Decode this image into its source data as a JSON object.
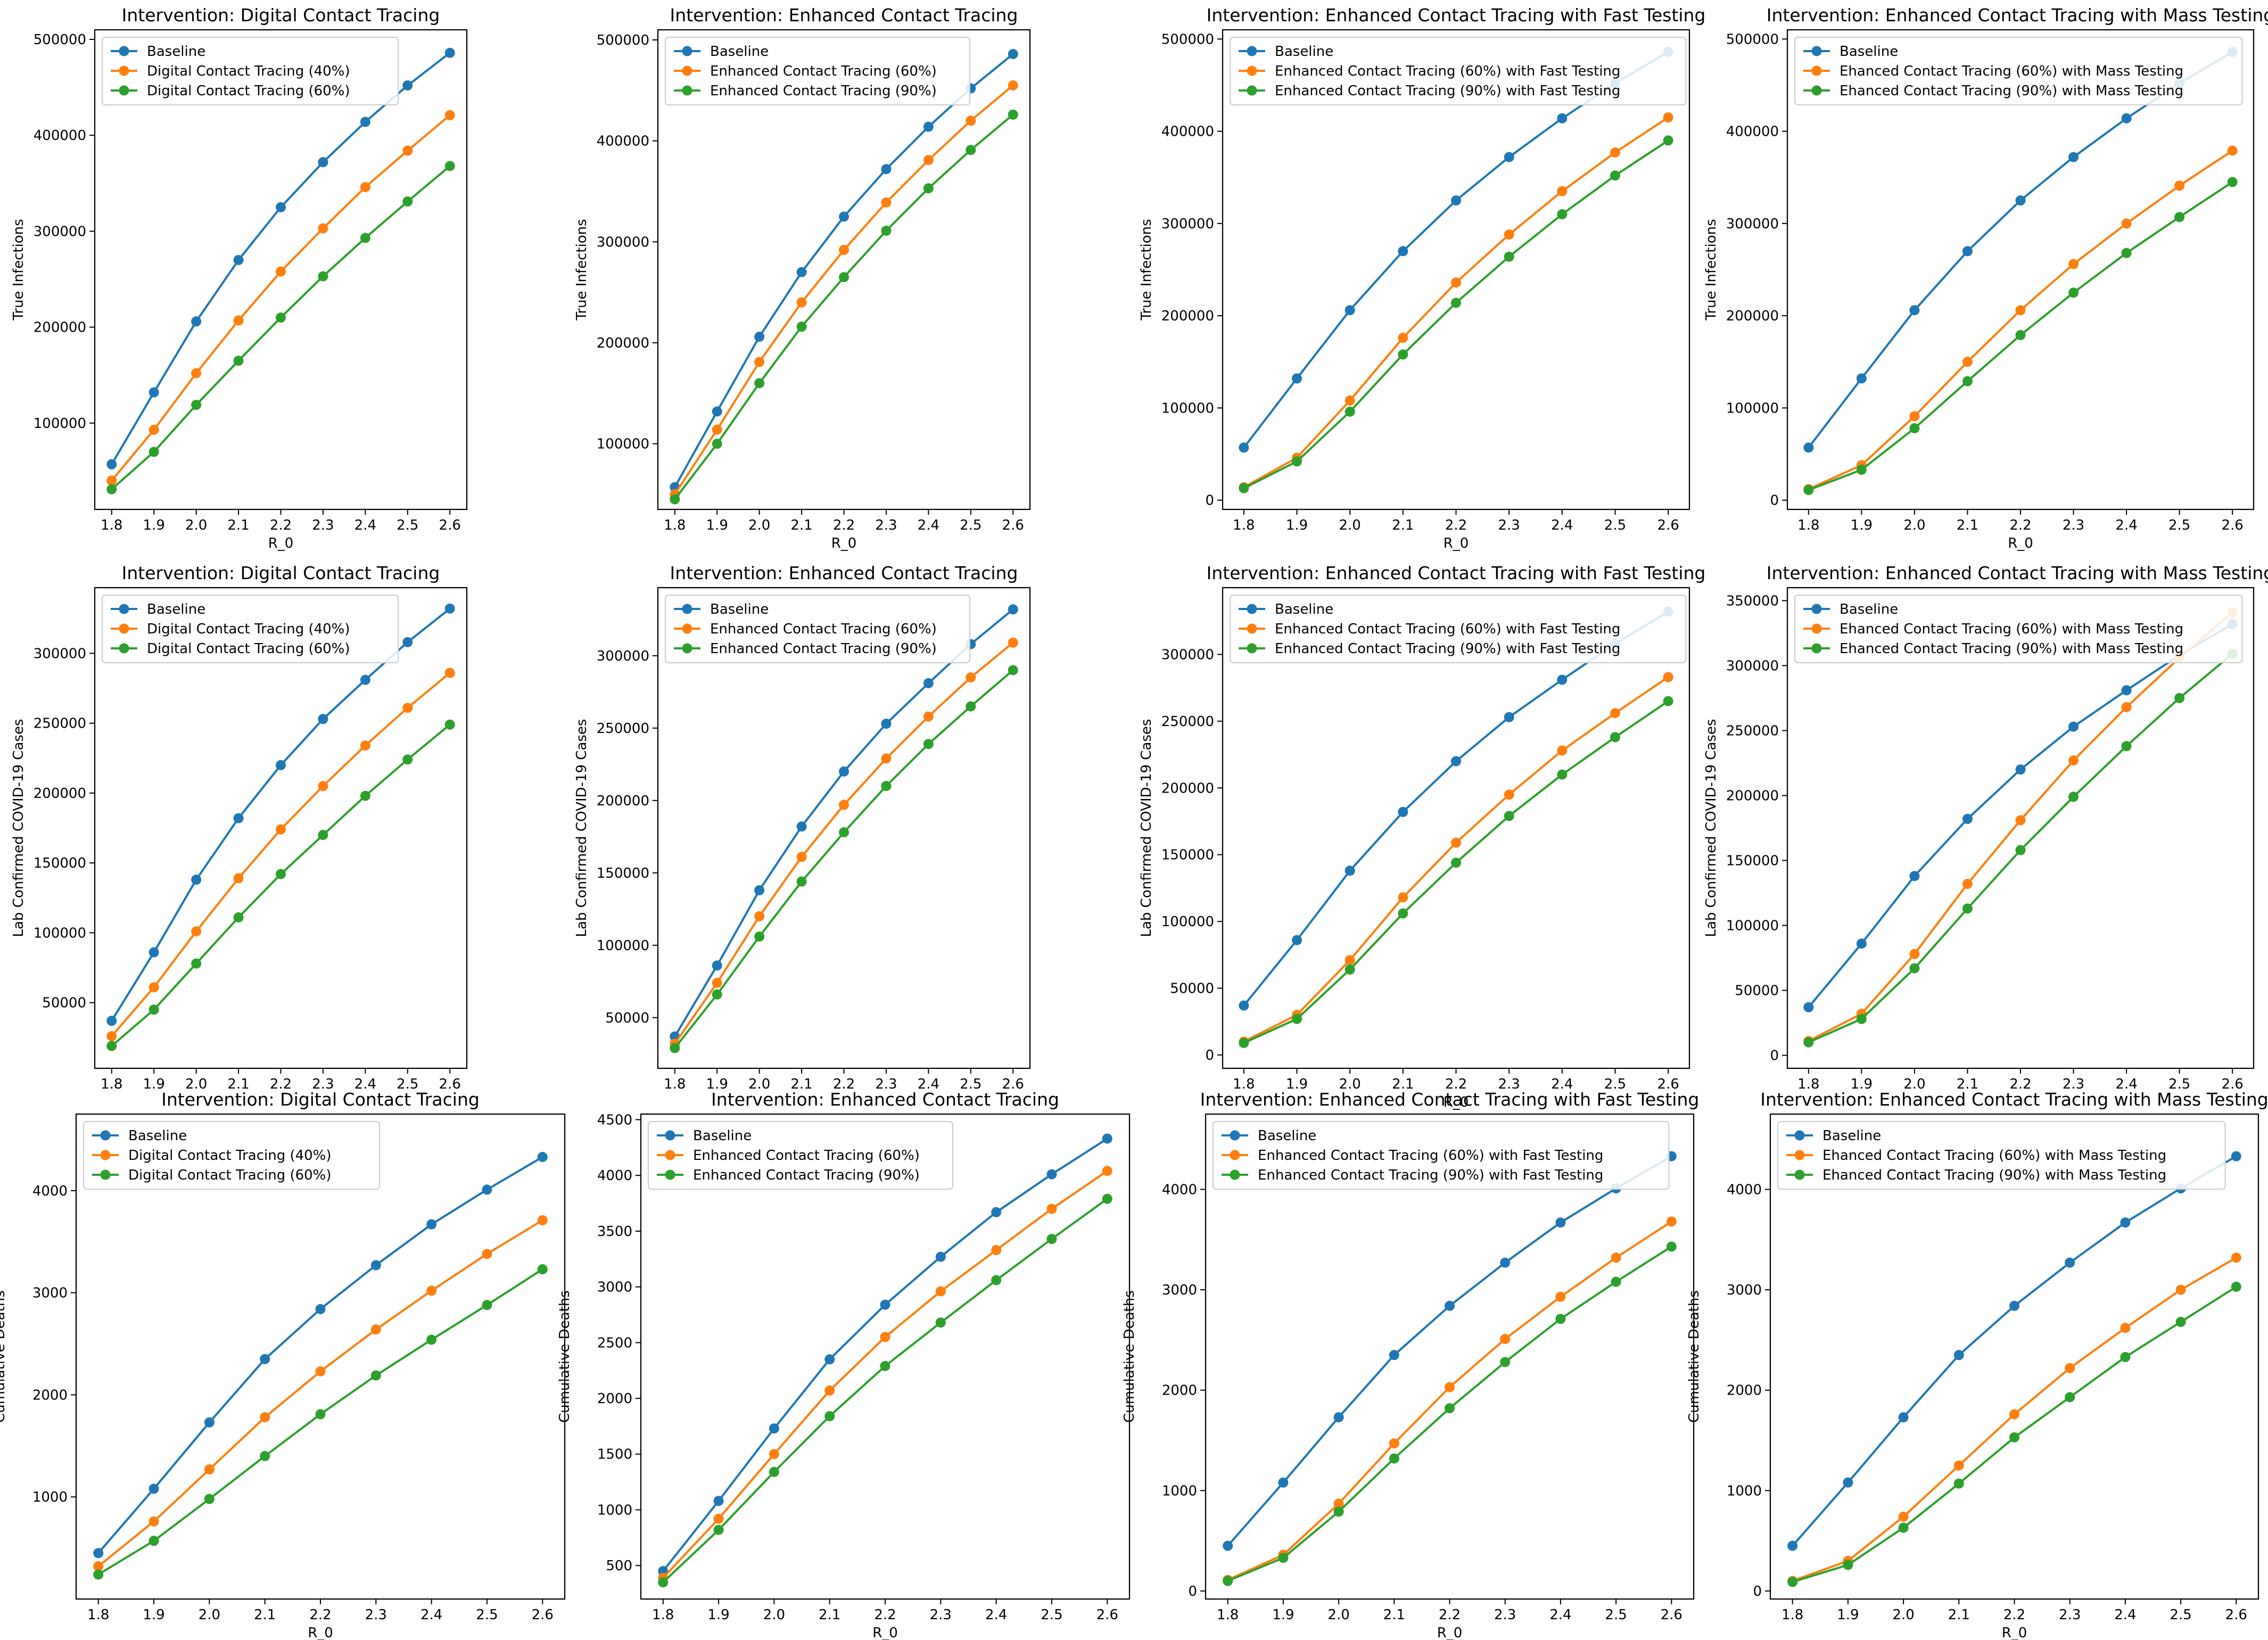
{
  "figure": {
    "colors": {
      "Baseline": "#1f77b4",
      "A": "#ff7f0e",
      "B": "#2ca02c"
    },
    "x": [
      1.8,
      1.9,
      2.0,
      2.1,
      2.2,
      2.3,
      2.4,
      2.5,
      2.6
    ],
    "xticks": [
      "1.8",
      "1.9",
      "2.0",
      "2.1",
      "2.2",
      "2.3",
      "2.4",
      "2.5",
      "2.6"
    ]
  },
  "chart_data": [
    {
      "type": "line",
      "title": "Intervention: Digital Contact Tracing",
      "xlabel": "R_0",
      "ylabel": "True Infections",
      "legend": "top-left",
      "ylim": [
        10000,
        510000
      ],
      "yticks": [
        100000,
        200000,
        300000,
        400000,
        500000
      ],
      "ytick_labels": [
        "100000",
        "200000",
        "300000",
        "400000",
        "500000"
      ],
      "series": [
        {
          "name": "Baseline",
          "values": [
            57000,
            132000,
            206000,
            270000,
            325000,
            372000,
            414000,
            452000,
            486000
          ]
        },
        {
          "name": "Digital Contact Tracing (40%)",
          "values": [
            40000,
            93000,
            152000,
            207000,
            258000,
            303000,
            346000,
            384000,
            421000
          ]
        },
        {
          "name": "Digital Contact Tracing (60%)",
          "values": [
            31000,
            70000,
            119000,
            165000,
            210000,
            253000,
            293000,
            331000,
            368000
          ]
        }
      ]
    },
    {
      "type": "line",
      "title": "Intervention: Enhanced Contact Tracing",
      "xlabel": "R_0",
      "ylabel": "True Infections",
      "legend": "top-left",
      "ylim": [
        35000,
        510000
      ],
      "yticks": [
        100000,
        200000,
        300000,
        400000,
        500000
      ],
      "ytick_labels": [
        "100000",
        "200000",
        "300000",
        "400000",
        "500000"
      ],
      "series": [
        {
          "name": "Baseline",
          "values": [
            57000,
            132000,
            206000,
            270000,
            325000,
            372000,
            414000,
            452000,
            486000
          ]
        },
        {
          "name": "Enhanced Contact Tracing (60%)",
          "values": [
            50000,
            114000,
            181000,
            240000,
            292000,
            339000,
            381000,
            420000,
            455000
          ]
        },
        {
          "name": "Enhanced Contact Tracing (90%)",
          "values": [
            45000,
            100000,
            160000,
            216000,
            265000,
            311000,
            353000,
            391000,
            426000
          ]
        }
      ]
    },
    {
      "type": "line",
      "title": "Intervention: Enhanced Contact Tracing with Fast Testing",
      "xlabel": "R_0",
      "ylabel": "True Infections",
      "legend": "top-left",
      "ylim": [
        -10000,
        510000
      ],
      "yticks": [
        0,
        100000,
        200000,
        300000,
        400000,
        500000
      ],
      "ytick_labels": [
        "0",
        "100000",
        "200000",
        "300000",
        "400000",
        "500000"
      ],
      "series": [
        {
          "name": "Baseline",
          "values": [
            57000,
            132000,
            206000,
            270000,
            325000,
            372000,
            414000,
            452000,
            486000
          ]
        },
        {
          "name": "Enhanced Contact Tracing (60%) with Fast Testing",
          "values": [
            14000,
            46000,
            108000,
            176000,
            236000,
            288000,
            335000,
            377000,
            415000
          ]
        },
        {
          "name": "Enhanced Contact Tracing (90%) with Fast Testing",
          "values": [
            13000,
            42000,
            96000,
            158000,
            214000,
            264000,
            310000,
            352000,
            390000
          ]
        }
      ]
    },
    {
      "type": "line",
      "title": "Intervention: Enhanced Contact Tracing with Mass Testing",
      "xlabel": "R_0",
      "ylabel": "True Infections",
      "legend": "top-left",
      "ylim": [
        -10000,
        510000
      ],
      "yticks": [
        0,
        100000,
        200000,
        300000,
        400000,
        500000
      ],
      "ytick_labels": [
        "0",
        "100000",
        "200000",
        "300000",
        "400000",
        "500000"
      ],
      "series": [
        {
          "name": "Baseline",
          "values": [
            57000,
            132000,
            206000,
            270000,
            325000,
            372000,
            414000,
            452000,
            486000
          ]
        },
        {
          "name": "Ehanced Contact Tracing (60%) with Mass Testing",
          "values": [
            12000,
            38000,
            91000,
            150000,
            206000,
            256000,
            300000,
            341000,
            379000
          ]
        },
        {
          "name": "Ehanced Contact Tracing (90%) with Mass Testing",
          "values": [
            11000,
            33000,
            78000,
            129000,
            179000,
            225000,
            268000,
            307000,
            345000
          ]
        }
      ]
    },
    {
      "type": "line",
      "title": "Intervention: Digital Contact Tracing",
      "xlabel": "",
      "ylabel": "Lab Confirmed COVID-19 Cases",
      "legend": "top-left",
      "ylim": [
        3000,
        347000
      ],
      "yticks": [
        50000,
        100000,
        150000,
        200000,
        250000,
        300000
      ],
      "ytick_labels": [
        "50000",
        "100000",
        "150000",
        "200000",
        "250000",
        "300000"
      ],
      "series": [
        {
          "name": "Baseline",
          "values": [
            37000,
            86000,
            138000,
            182000,
            220000,
            253000,
            281000,
            308000,
            332000
          ]
        },
        {
          "name": "Digital Contact Tracing (40%)",
          "values": [
            26000,
            61000,
            101000,
            139000,
            174000,
            205000,
            234000,
            261000,
            286000
          ]
        },
        {
          "name": "Digital Contact Tracing (60%)",
          "values": [
            19000,
            45000,
            78000,
            111000,
            142000,
            170000,
            198000,
            224000,
            249000
          ]
        }
      ]
    },
    {
      "type": "line",
      "title": "Intervention: Enhanced Contact Tracing",
      "xlabel": "",
      "ylabel": "Lab Confirmed COVID-19 Cases",
      "legend": "top-left",
      "ylim": [
        15000,
        347000
      ],
      "yticks": [
        50000,
        100000,
        150000,
        200000,
        250000,
        300000
      ],
      "ytick_labels": [
        "50000",
        "100000",
        "150000",
        "200000",
        "250000",
        "300000"
      ],
      "series": [
        {
          "name": "Baseline",
          "values": [
            37000,
            86000,
            138000,
            182000,
            220000,
            253000,
            281000,
            308000,
            332000
          ]
        },
        {
          "name": "Enhanced Contact Tracing (60%)",
          "values": [
            32000,
            74000,
            120000,
            161000,
            197000,
            229000,
            258000,
            285000,
            309000
          ]
        },
        {
          "name": "Enhanced Contact Tracing (90%)",
          "values": [
            29000,
            66000,
            106000,
            144000,
            178000,
            210000,
            239000,
            265000,
            290000
          ]
        }
      ]
    },
    {
      "type": "line",
      "title": "Intervention: Enhanced Contact Tracing with Fast Testing",
      "xlabel": "R_0",
      "ylabel": "Lab Confirmed COVID-19 Cases",
      "legend": "top-left",
      "ylim": [
        -10000,
        350000
      ],
      "yticks": [
        0,
        50000,
        100000,
        150000,
        200000,
        250000,
        300000
      ],
      "ytick_labels": [
        "0",
        "50000",
        "100000",
        "150000",
        "200000",
        "250000",
        "300000"
      ],
      "series": [
        {
          "name": "Baseline",
          "values": [
            37000,
            86000,
            138000,
            182000,
            220000,
            253000,
            281000,
            308000,
            332000
          ]
        },
        {
          "name": "Enhanced Contact Tracing (60%) with Fast Testing",
          "values": [
            10000,
            30000,
            71000,
            118000,
            159000,
            195000,
            228000,
            256000,
            283000
          ]
        },
        {
          "name": "Enhanced Contact Tracing (90%) with Fast Testing",
          "values": [
            9000,
            27000,
            64000,
            106000,
            144000,
            179000,
            210000,
            238000,
            265000
          ]
        }
      ]
    },
    {
      "type": "line",
      "title": "Intervention: Enhanced Contact Tracing with Mass Testing",
      "xlabel": "",
      "ylabel": "Lab Confirmed COVID-19 Cases",
      "legend": "top-left",
      "ylim": [
        -10000,
        360000
      ],
      "yticks": [
        0,
        50000,
        100000,
        150000,
        200000,
        250000,
        300000,
        350000
      ],
      "ytick_labels": [
        "0",
        "50000",
        "100000",
        "150000",
        "200000",
        "250000",
        "300000",
        "350000"
      ],
      "series": [
        {
          "name": "Baseline",
          "values": [
            37000,
            86000,
            138000,
            182000,
            220000,
            253000,
            281000,
            308000,
            332000
          ]
        },
        {
          "name": "Ehanced Contact Tracing (60%) with Mass Testing",
          "values": [
            11000,
            32000,
            78000,
            132000,
            181000,
            227000,
            268000,
            306000,
            341000
          ]
        },
        {
          "name": "Ehanced Contact Tracing (90%) with Mass Testing",
          "values": [
            10000,
            28000,
            67000,
            113000,
            158000,
            199000,
            238000,
            275000,
            309000
          ]
        }
      ]
    },
    {
      "type": "line",
      "title": "Intervention: Digital Contact Tracing",
      "xlabel": "R_0",
      "ylabel": "Cumulative Deaths",
      "legend": "top-left",
      "ylim": [
        0,
        4750
      ],
      "yticks": [
        1000,
        2000,
        3000,
        4000
      ],
      "ytick_labels": [
        "1000",
        "2000",
        "3000",
        "4000"
      ],
      "series": [
        {
          "name": "Baseline",
          "values": [
            450,
            1080,
            1730,
            2350,
            2840,
            3270,
            3670,
            4010,
            4330
          ]
        },
        {
          "name": "Digital Contact Tracing (40%)",
          "values": [
            320,
            760,
            1270,
            1780,
            2230,
            2640,
            3020,
            3380,
            3710
          ]
        },
        {
          "name": "Digital Contact Tracing (60%)",
          "values": [
            240,
            570,
            980,
            1400,
            1810,
            2190,
            2540,
            2880,
            3230
          ]
        }
      ]
    },
    {
      "type": "line",
      "title": "Intervention: Enhanced Contact Tracing",
      "xlabel": "R_0",
      "ylabel": "Cumulative Deaths",
      "legend": "top-left",
      "ylim": [
        200,
        4550
      ],
      "yticks": [
        500,
        1000,
        1500,
        2000,
        2500,
        3000,
        3500,
        4000,
        4500
      ],
      "ytick_labels": [
        "500",
        "1000",
        "1500",
        "2000",
        "2500",
        "3000",
        "3500",
        "4000",
        "4500"
      ],
      "series": [
        {
          "name": "Baseline",
          "values": [
            450,
            1080,
            1730,
            2350,
            2840,
            3270,
            3670,
            4010,
            4330
          ]
        },
        {
          "name": "Enhanced Contact Tracing (60%)",
          "values": [
            390,
            920,
            1500,
            2070,
            2550,
            2960,
            3330,
            3700,
            4040
          ]
        },
        {
          "name": "Enhanced Contact Tracing (90%)",
          "values": [
            350,
            820,
            1340,
            1840,
            2290,
            2680,
            3060,
            3430,
            3790
          ]
        }
      ]
    },
    {
      "type": "line",
      "title": "Intervention: Enhanced Contact Tracing with Fast Testing",
      "xlabel": "R_0",
      "ylabel": "Cumulative Deaths",
      "legend": "top-left",
      "ylim": [
        -80,
        4750
      ],
      "yticks": [
        0,
        1000,
        2000,
        3000,
        4000
      ],
      "ytick_labels": [
        "0",
        "1000",
        "2000",
        "3000",
        "4000"
      ],
      "series": [
        {
          "name": "Baseline",
          "values": [
            450,
            1080,
            1730,
            2350,
            2840,
            3270,
            3670,
            4010,
            4330
          ]
        },
        {
          "name": "Enhanced Contact Tracing (60%) with Fast Testing",
          "values": [
            110,
            360,
            870,
            1470,
            2030,
            2510,
            2930,
            3320,
            3680
          ]
        },
        {
          "name": "Enhanced Contact Tracing (90%) with Fast Testing",
          "values": [
            100,
            330,
            790,
            1320,
            1820,
            2280,
            2710,
            3080,
            3430
          ]
        }
      ]
    },
    {
      "type": "line",
      "title": "Intervention: Enhanced Contact Tracing with Mass Testing",
      "xlabel": "R_0",
      "ylabel": "Cumulative Deaths",
      "legend": "top-left",
      "ylim": [
        -80,
        4750
      ],
      "yticks": [
        0,
        1000,
        2000,
        3000,
        4000
      ],
      "ytick_labels": [
        "0",
        "1000",
        "2000",
        "3000",
        "4000"
      ],
      "series": [
        {
          "name": "Baseline",
          "values": [
            450,
            1080,
            1730,
            2350,
            2840,
            3270,
            3670,
            4010,
            4330
          ]
        },
        {
          "name": "Ehanced Contact Tracing (60%) with Mass Testing",
          "values": [
            100,
            300,
            740,
            1250,
            1760,
            2220,
            2620,
            3000,
            3320
          ]
        },
        {
          "name": "Ehanced Contact Tracing (90%) with Mass Testing",
          "values": [
            90,
            260,
            630,
            1070,
            1530,
            1930,
            2330,
            2680,
            3030
          ]
        }
      ]
    }
  ]
}
